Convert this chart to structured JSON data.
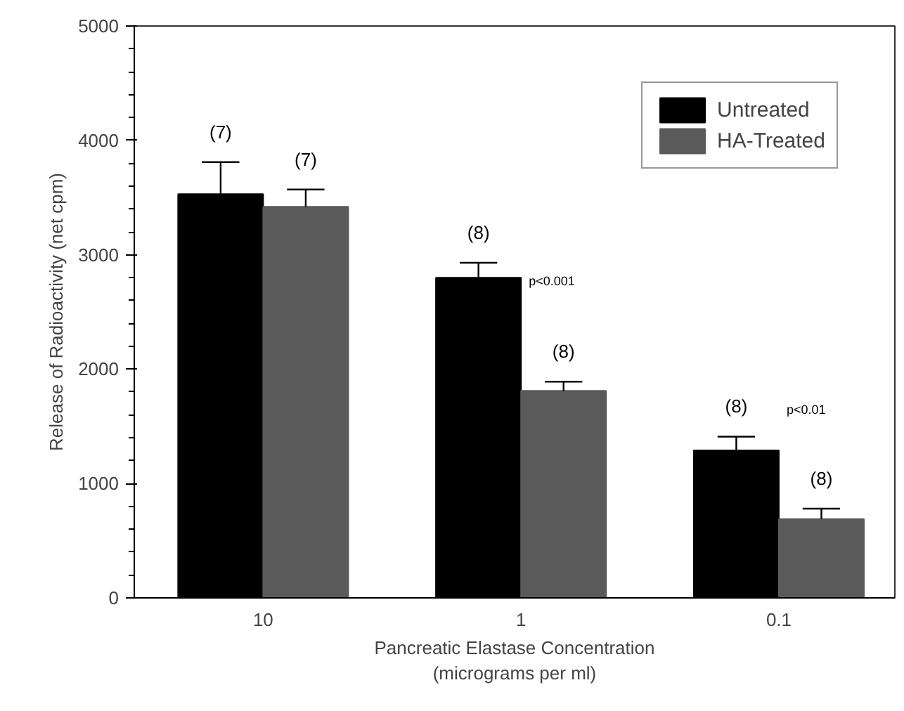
{
  "chart_data": {
    "type": "bar",
    "xlabel": "Pancreatic Elastase Concentration\n(micrograms per ml)",
    "ylabel": "Release of Radioactivity (net cpm)",
    "categories": [
      "10",
      "1",
      "0.1"
    ],
    "series": [
      {
        "name": "Untreated",
        "color": "#000000",
        "values": [
          3530,
          2800,
          1290
        ],
        "errors": [
          280,
          130,
          120
        ]
      },
      {
        "name": "HA-Treated",
        "color": "#5a5a5a",
        "values": [
          3420,
          1810,
          690
        ],
        "errors": [
          150,
          80,
          90
        ]
      }
    ],
    "ylim": [
      0,
      5000
    ],
    "yticks": [
      0,
      1000,
      2000,
      3000,
      4000,
      5000
    ],
    "grid": false,
    "legend": "top right",
    "annotations": [
      "(7)",
      "(7)",
      "(8)",
      "(8)",
      "(8)",
      "(8)",
      "p<0.001",
      "p<0.01"
    ]
  }
}
